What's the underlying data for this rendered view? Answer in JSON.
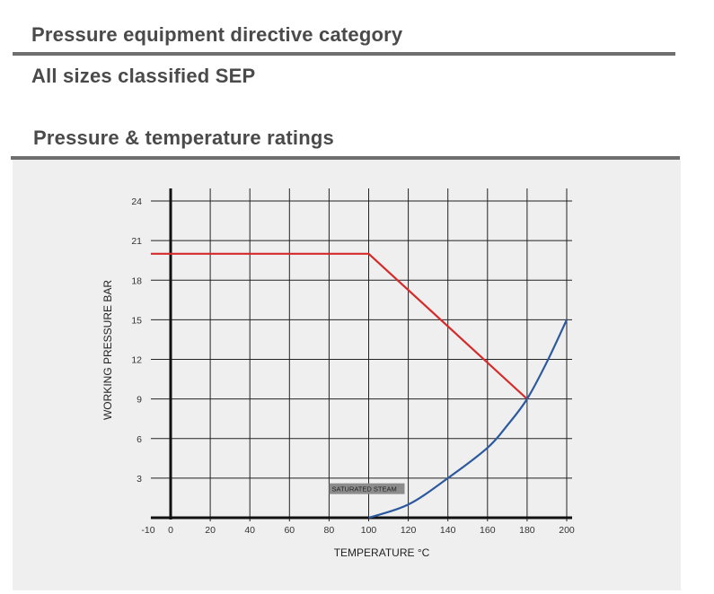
{
  "headings": {
    "pressure_equipment": "Pressure equipment directive category",
    "classification": "All sizes classified SEP",
    "ratings": "Pressure & temperature ratings"
  },
  "chart_data": {
    "type": "line",
    "title": "",
    "xlabel": "TEMPERATURE °C",
    "ylabel": "WORKING PRESSURE BAR",
    "xlim": [
      -10,
      200
    ],
    "ylim": [
      0,
      24
    ],
    "x_ticks": [
      -10,
      0,
      20,
      40,
      60,
      80,
      100,
      120,
      140,
      160,
      180,
      200
    ],
    "y_ticks": [
      3,
      6,
      9,
      12,
      15,
      18,
      21,
      24
    ],
    "grid": true,
    "series": [
      {
        "color": "#d42a2a",
        "points": [
          [
            -10,
            20
          ],
          [
            100,
            20
          ],
          [
            180,
            9
          ]
        ]
      },
      {
        "color": "#2d5a9e",
        "points": [
          [
            100,
            0
          ],
          [
            120,
            1
          ],
          [
            140,
            3
          ],
          [
            160,
            5.3
          ],
          [
            170,
            7
          ],
          [
            180,
            9
          ],
          [
            190,
            11.8
          ],
          [
            200,
            15
          ]
        ]
      }
    ],
    "annotations": [
      {
        "text": "SATURATED STEAM",
        "x": 100,
        "y": 2.2,
        "background": "#8c8c8c"
      }
    ]
  }
}
